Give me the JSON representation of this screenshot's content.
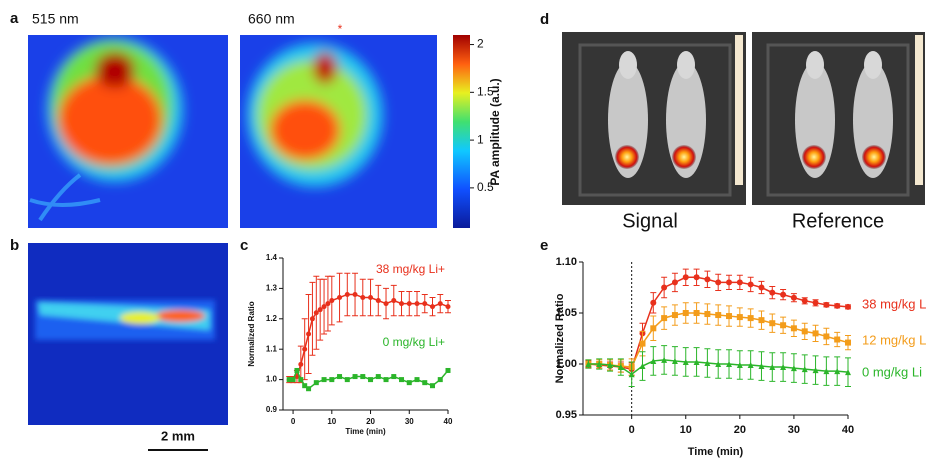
{
  "panels": {
    "a": {
      "label": "a",
      "titles": [
        "515 nm",
        "660 nm"
      ],
      "colorbar": {
        "label": "PA amplitude (a.u.)",
        "lim": [
          0.08,
          2.1
        ],
        "ticks": [
          2,
          1.5,
          1,
          0.5
        ]
      }
    },
    "b": {
      "label": "b",
      "scale_bar": "2 mm"
    },
    "d": {
      "label": "d",
      "captions": [
        "Signal",
        "Reference"
      ]
    }
  },
  "chart_data": [
    {
      "type": "scatter",
      "panel": "c",
      "xlabel": "Time (min)",
      "ylabel": "Normalized Ratio",
      "xlim": [
        -2.6,
        40
      ],
      "xticks": [
        0,
        10,
        20,
        30,
        40
      ],
      "ylim": [
        0.9,
        1.4
      ],
      "yticks": [
        0.9,
        {
          "value": 1,
          "label": "1.0"
        },
        1.1,
        1.2,
        1.3,
        1.4
      ],
      "series": [
        {
          "name": "38 mg/kg Li+",
          "color": "#e8301c",
          "marker": "circle",
          "x": [
            -1,
            0,
            1,
            2,
            3,
            4,
            5,
            6,
            7,
            8,
            9,
            10,
            12,
            14,
            16,
            18,
            20,
            22,
            24,
            26,
            28,
            30,
            32,
            34,
            36,
            38,
            40
          ],
          "values": [
            1.0,
            1.0,
            1.01,
            1.05,
            1.1,
            1.15,
            1.2,
            1.22,
            1.23,
            1.24,
            1.25,
            1.26,
            1.27,
            1.28,
            1.28,
            1.27,
            1.27,
            1.26,
            1.25,
            1.26,
            1.25,
            1.25,
            1.25,
            1.25,
            1.24,
            1.25,
            1.24
          ],
          "errors": [
            0.01,
            0.01,
            0.02,
            0.06,
            0.1,
            0.13,
            0.12,
            0.12,
            0.1,
            0.09,
            0.09,
            0.08,
            0.08,
            0.07,
            0.07,
            0.06,
            0.06,
            0.05,
            0.05,
            0.05,
            0.04,
            0.04,
            0.04,
            0.03,
            0.03,
            0.03,
            0.02
          ]
        },
        {
          "name": "0 mg/kg Li+",
          "color": "#2bb52a",
          "marker": "square",
          "x": [
            -1,
            0,
            1,
            2,
            3,
            4,
            6,
            8,
            10,
            12,
            14,
            16,
            18,
            20,
            22,
            24,
            26,
            28,
            30,
            32,
            34,
            36,
            38,
            40
          ],
          "values": [
            1.0,
            1.0,
            1.03,
            1.0,
            0.98,
            0.97,
            0.99,
            1.0,
            1.0,
            1.01,
            1.0,
            1.01,
            1.01,
            1.0,
            1.01,
            1.0,
            1.01,
            1.0,
            0.99,
            1.0,
            0.99,
            0.98,
            1.0,
            1.03
          ]
        }
      ]
    },
    {
      "type": "scatter",
      "panel": "e",
      "xlabel": "Time (min)",
      "ylabel": "Normalized Ratio",
      "marker_line": 0,
      "xlim": [
        -9,
        40
      ],
      "xticks": [
        0,
        10,
        20,
        30,
        40
      ],
      "ylim": [
        0.95,
        1.1
      ],
      "yticks": [
        0.95,
        {
          "value": 1,
          "label": "1.00"
        },
        1.05,
        {
          "value": 1.1,
          "label": "1.10"
        }
      ],
      "series": [
        {
          "name": "38 mg/kg L",
          "color": "#e8301c",
          "marker": "circle",
          "x": [
            -8,
            -6,
            -4,
            -2,
            0,
            2,
            4,
            6,
            8,
            10,
            12,
            14,
            16,
            18,
            20,
            22,
            24,
            26,
            28,
            30,
            32,
            34,
            36,
            38,
            40
          ],
          "values": [
            1.0,
            0.999,
            0.998,
            0.997,
            0.995,
            1.03,
            1.06,
            1.075,
            1.08,
            1.085,
            1.085,
            1.083,
            1.08,
            1.08,
            1.08,
            1.078,
            1.075,
            1.07,
            1.068,
            1.065,
            1.062,
            1.06,
            1.058,
            1.057,
            1.056
          ],
          "errors": [
            0.003,
            0.003,
            0.004,
            0.005,
            0.006,
            0.01,
            0.01,
            0.01,
            0.009,
            0.008,
            0.008,
            0.008,
            0.008,
            0.007,
            0.007,
            0.007,
            0.006,
            0.006,
            0.005,
            0.004,
            0.003,
            0.003,
            0.002,
            0.002,
            0.002
          ]
        },
        {
          "name": "12 mg/kg L",
          "color": "#f39c1a",
          "marker": "square",
          "x": [
            -8,
            -6,
            -4,
            -2,
            0,
            2,
            4,
            6,
            8,
            10,
            12,
            14,
            16,
            18,
            20,
            22,
            24,
            26,
            28,
            30,
            32,
            34,
            36,
            38,
            40
          ],
          "values": [
            1.0,
            1.0,
            0.999,
            0.998,
            0.997,
            1.02,
            1.035,
            1.045,
            1.048,
            1.05,
            1.05,
            1.049,
            1.048,
            1.047,
            1.046,
            1.045,
            1.043,
            1.04,
            1.038,
            1.035,
            1.032,
            1.03,
            1.027,
            1.024,
            1.021
          ],
          "errors": [
            0.004,
            0.004,
            0.005,
            0.006,
            0.008,
            0.012,
            0.012,
            0.011,
            0.01,
            0.01,
            0.01,
            0.01,
            0.01,
            0.01,
            0.009,
            0.009,
            0.009,
            0.009,
            0.008,
            0.008,
            0.008,
            0.008,
            0.008,
            0.007,
            0.007
          ]
        },
        {
          "name": "0 mg/kg Li",
          "color": "#2bb52a",
          "marker": "triangle",
          "x": [
            -8,
            -6,
            -4,
            -2,
            0,
            2,
            4,
            6,
            8,
            10,
            12,
            14,
            16,
            18,
            20,
            22,
            24,
            26,
            28,
            30,
            32,
            34,
            36,
            38,
            40
          ],
          "values": [
            1.0,
            1.0,
            0.999,
            0.997,
            0.99,
            0.998,
            1.003,
            1.004,
            1.003,
            1.002,
            1.002,
            1.001,
            1.0,
            1.0,
            0.999,
            0.999,
            0.998,
            0.997,
            0.997,
            0.996,
            0.995,
            0.994,
            0.993,
            0.993,
            0.992
          ],
          "errors": [
            0.004,
            0.005,
            0.006,
            0.008,
            0.012,
            0.014,
            0.014,
            0.014,
            0.014,
            0.014,
            0.014,
            0.014,
            0.014,
            0.014,
            0.014,
            0.014,
            0.014,
            0.014,
            0.014,
            0.014,
            0.014,
            0.014,
            0.014,
            0.014,
            0.014
          ]
        }
      ]
    }
  ]
}
